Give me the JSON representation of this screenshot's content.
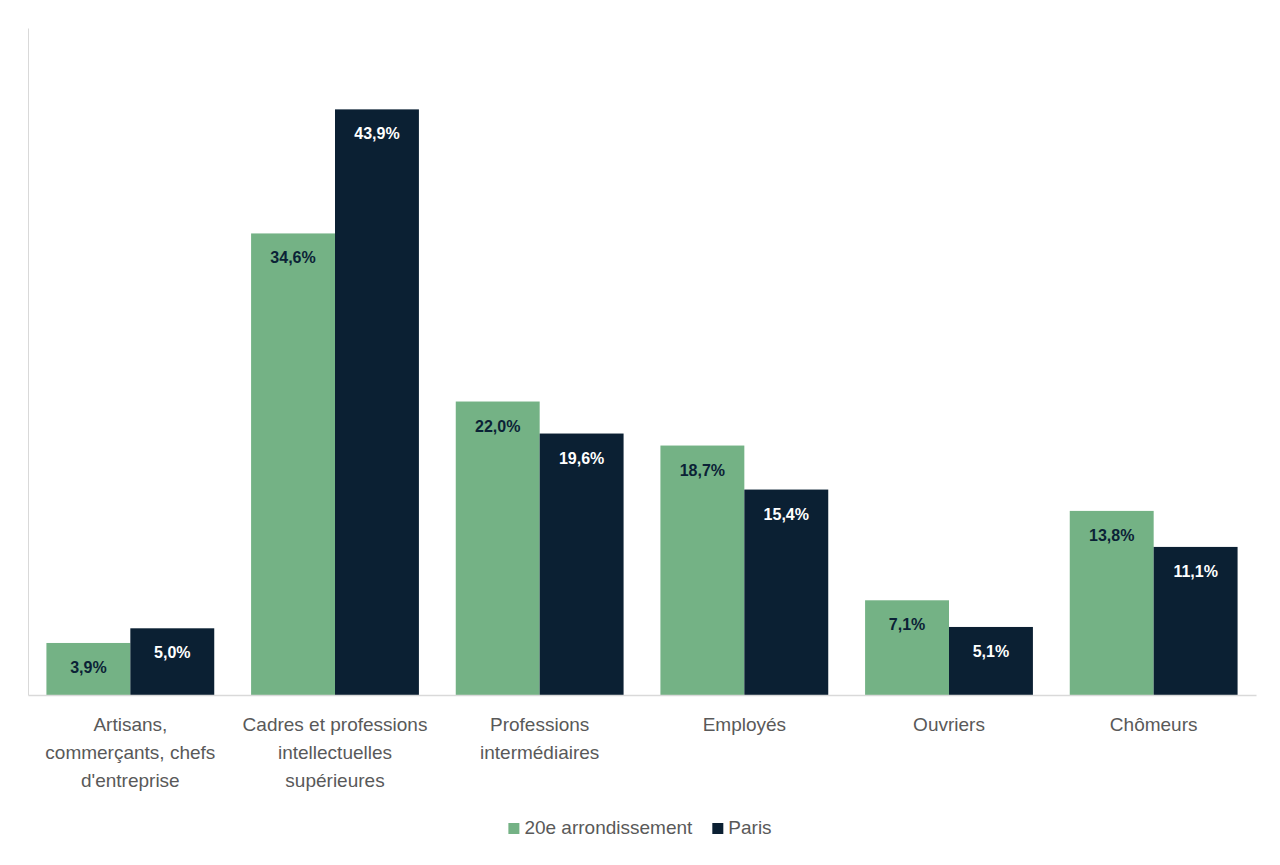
{
  "chart_data": {
    "type": "bar",
    "categories": [
      "Artisans,\ncommerçants, chefs\nd'entreprise",
      "Cadres et professions\nintellectuelles\nsupérieures",
      "Professions\nintermédiaires",
      "Employés",
      "Ouvriers",
      "Chômeurs"
    ],
    "series": [
      {
        "name": "20e arrondissement",
        "color": "#74b285",
        "values": [
          3.9,
          34.6,
          22.0,
          18.7,
          7.1,
          13.8
        ],
        "value_labels": [
          "3,9%",
          "34,6%",
          "22,0%",
          "18,7%",
          "7,1%",
          "13,8%"
        ]
      },
      {
        "name": "Paris",
        "color": "#0b2033",
        "values": [
          5.0,
          43.9,
          19.6,
          15.4,
          5.1,
          11.1
        ],
        "value_labels": [
          "5,0%",
          "43,9%",
          "19,6%",
          "15,4%",
          "5,1%",
          "11,1%"
        ]
      }
    ],
    "ylim": [
      0,
      50
    ],
    "yticks": [],
    "grid": false,
    "legend": "bottom",
    "data_labels": true,
    "tick_labels": "x"
  }
}
